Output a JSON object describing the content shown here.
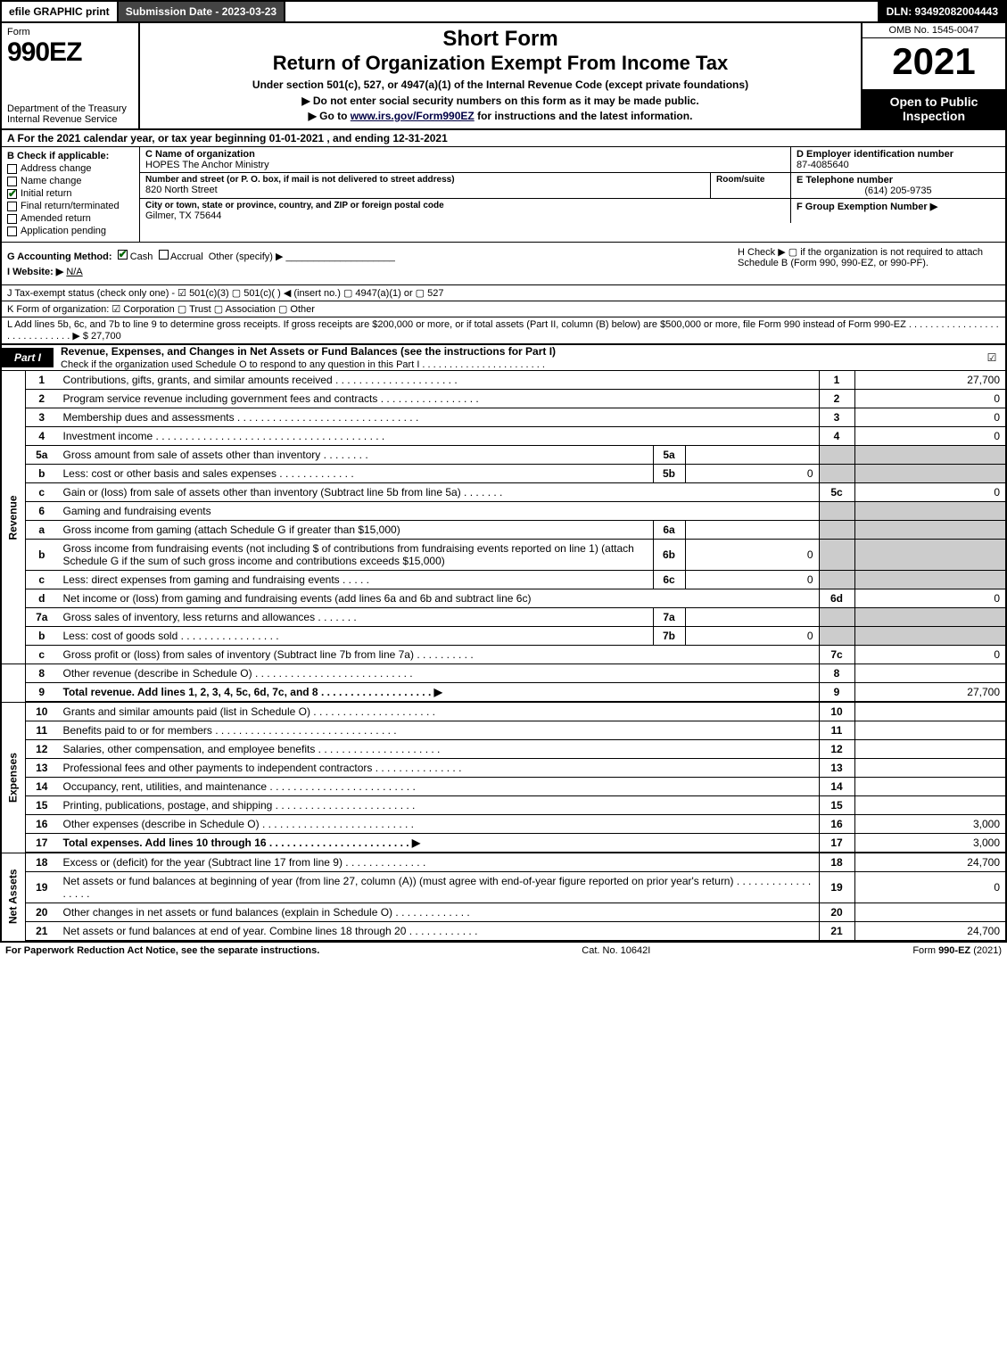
{
  "topbar": {
    "efile": "efile GRAPHIC print",
    "submission": "Submission Date - 2023-03-23",
    "dln": "DLN: 93492082004443"
  },
  "header": {
    "form_word": "Form",
    "form_number": "990EZ",
    "department": "Department of the Treasury\nInternal Revenue Service",
    "short_form": "Short Form",
    "title": "Return of Organization Exempt From Income Tax",
    "subtitle": "Under section 501(c), 527, or 4947(a)(1) of the Internal Revenue Code (except private foundations)",
    "note1": "▶ Do not enter social security numbers on this form as it may be made public.",
    "note2_prefix": "▶ Go to ",
    "note2_link": "www.irs.gov/Form990EZ",
    "note2_suffix": " for instructions and the latest information.",
    "omb": "OMB No. 1545-0047",
    "year": "2021",
    "inspection": "Open to Public Inspection"
  },
  "row_a": "A  For the 2021 calendar year, or tax year beginning 01-01-2021 , and ending 12-31-2021",
  "section_b": {
    "header": "B  Check if applicable:",
    "items": [
      {
        "label": "Address change",
        "checked": false
      },
      {
        "label": "Name change",
        "checked": false
      },
      {
        "label": "Initial return",
        "checked": true
      },
      {
        "label": "Final return/terminated",
        "checked": false
      },
      {
        "label": "Amended return",
        "checked": false
      },
      {
        "label": "Application pending",
        "checked": false
      }
    ]
  },
  "section_c": {
    "name_hdr": "C Name of organization",
    "name": "HOPES The Anchor Ministry",
    "addr_hdr": "Number and street (or P. O. box, if mail is not delivered to street address)",
    "addr": "820 North Street",
    "room_hdr": "Room/suite",
    "room": "",
    "city_hdr": "City or town, state or province, country, and ZIP or foreign postal code",
    "city": "Gilmer, TX  75644"
  },
  "section_d": {
    "hdr": "D Employer identification number",
    "val": "87-4085640"
  },
  "section_e": {
    "hdr": "E Telephone number",
    "val": "(614) 205-9735"
  },
  "section_f": {
    "hdr": "F Group Exemption Number  ▶",
    "val": ""
  },
  "section_g": {
    "label": "G Accounting Method:",
    "cash": "Cash",
    "accrual": "Accrual",
    "other": "Other (specify) ▶"
  },
  "section_h": {
    "text": "H  Check ▶  ▢  if the organization is not required to attach Schedule B (Form 990, 990-EZ, or 990-PF)."
  },
  "section_i": {
    "label": "I Website: ▶",
    "val": "N/A"
  },
  "line_j": "J Tax-exempt status (check only one) - ☑ 501(c)(3)  ▢ 501(c)(  ) ◀ (insert no.)  ▢ 4947(a)(1) or  ▢ 527",
  "line_k": "K Form of organization:  ☑ Corporation   ▢ Trust   ▢ Association   ▢ Other",
  "line_l": "L Add lines 5b, 6c, and 7b to line 9 to determine gross receipts. If gross receipts are $200,000 or more, or if total assets (Part II, column (B) below) are $500,000 or more, file Form 990 instead of Form 990-EZ  . . . . . . . . . . . . . . . . . . . . . . . . . . . . .  ▶ $ 27,700",
  "part1": {
    "tab": "Part I",
    "title": "Revenue, Expenses, and Changes in Net Assets or Fund Balances (see the instructions for Part I)",
    "subtitle": "Check if the organization used Schedule O to respond to any question in this Part I . . . . . . . . . . . . . . . . . . . . . . .",
    "check": "☑"
  },
  "side_labels": {
    "revenue": "Revenue",
    "expenses": "Expenses",
    "netassets": "Net Assets"
  },
  "lines": {
    "l1": {
      "ln": "1",
      "desc": "Contributions, gifts, grants, and similar amounts received",
      "num": "1",
      "amt": "27,700"
    },
    "l2": {
      "ln": "2",
      "desc": "Program service revenue including government fees and contracts",
      "num": "2",
      "amt": "0"
    },
    "l3": {
      "ln": "3",
      "desc": "Membership dues and assessments",
      "num": "3",
      "amt": "0"
    },
    "l4": {
      "ln": "4",
      "desc": "Investment income",
      "num": "4",
      "amt": "0"
    },
    "l5a": {
      "ln": "5a",
      "desc": "Gross amount from sale of assets other than inventory",
      "sub": "5a",
      "subval": ""
    },
    "l5b": {
      "ln": "b",
      "desc": "Less: cost or other basis and sales expenses",
      "sub": "5b",
      "subval": "0"
    },
    "l5c": {
      "ln": "c",
      "desc": "Gain or (loss) from sale of assets other than inventory (Subtract line 5b from line 5a)",
      "num": "5c",
      "amt": "0"
    },
    "l6": {
      "ln": "6",
      "desc": "Gaming and fundraising events"
    },
    "l6a": {
      "ln": "a",
      "desc": "Gross income from gaming (attach Schedule G if greater than $15,000)",
      "sub": "6a",
      "subval": ""
    },
    "l6b": {
      "ln": "b",
      "desc": "Gross income from fundraising events (not including $                      of contributions from fundraising events reported on line 1) (attach Schedule G if the sum of such gross income and contributions exceeds $15,000)",
      "sub": "6b",
      "subval": "0"
    },
    "l6c": {
      "ln": "c",
      "desc": "Less: direct expenses from gaming and fundraising events",
      "sub": "6c",
      "subval": "0"
    },
    "l6d": {
      "ln": "d",
      "desc": "Net income or (loss) from gaming and fundraising events (add lines 6a and 6b and subtract line 6c)",
      "num": "6d",
      "amt": "0"
    },
    "l7a": {
      "ln": "7a",
      "desc": "Gross sales of inventory, less returns and allowances",
      "sub": "7a",
      "subval": ""
    },
    "l7b": {
      "ln": "b",
      "desc": "Less: cost of goods sold",
      "sub": "7b",
      "subval": "0"
    },
    "l7c": {
      "ln": "c",
      "desc": "Gross profit or (loss) from sales of inventory (Subtract line 7b from line 7a)",
      "num": "7c",
      "amt": "0"
    },
    "l8": {
      "ln": "8",
      "desc": "Other revenue (describe in Schedule O)",
      "num": "8",
      "amt": ""
    },
    "l9": {
      "ln": "9",
      "desc": "Total revenue. Add lines 1, 2, 3, 4, 5c, 6d, 7c, and 8  . . . . . . . . . . . . . . . . . . .  ▶",
      "num": "9",
      "amt": "27,700"
    },
    "l10": {
      "ln": "10",
      "desc": "Grants and similar amounts paid (list in Schedule O)",
      "num": "10",
      "amt": ""
    },
    "l11": {
      "ln": "11",
      "desc": "Benefits paid to or for members",
      "num": "11",
      "amt": ""
    },
    "l12": {
      "ln": "12",
      "desc": "Salaries, other compensation, and employee benefits",
      "num": "12",
      "amt": ""
    },
    "l13": {
      "ln": "13",
      "desc": "Professional fees and other payments to independent contractors",
      "num": "13",
      "amt": ""
    },
    "l14": {
      "ln": "14",
      "desc": "Occupancy, rent, utilities, and maintenance",
      "num": "14",
      "amt": ""
    },
    "l15": {
      "ln": "15",
      "desc": "Printing, publications, postage, and shipping",
      "num": "15",
      "amt": ""
    },
    "l16": {
      "ln": "16",
      "desc": "Other expenses (describe in Schedule O)",
      "num": "16",
      "amt": "3,000"
    },
    "l17": {
      "ln": "17",
      "desc": "Total expenses. Add lines 10 through 16  . . . . . . . . . . . . . . . . . . . . . . . .  ▶",
      "num": "17",
      "amt": "3,000"
    },
    "l18": {
      "ln": "18",
      "desc": "Excess or (deficit) for the year (Subtract line 17 from line 9)",
      "num": "18",
      "amt": "24,700"
    },
    "l19": {
      "ln": "19",
      "desc": "Net assets or fund balances at beginning of year (from line 27, column (A)) (must agree with end-of-year figure reported on prior year's return)",
      "num": "19",
      "amt": "0"
    },
    "l20": {
      "ln": "20",
      "desc": "Other changes in net assets or fund balances (explain in Schedule O)",
      "num": "20",
      "amt": ""
    },
    "l21": {
      "ln": "21",
      "desc": "Net assets or fund balances at end of year. Combine lines 18 through 20",
      "num": "21",
      "amt": "24,700"
    }
  },
  "footer": {
    "left": "For Paperwork Reduction Act Notice, see the separate instructions.",
    "center": "Cat. No. 10642I",
    "right_prefix": "Form ",
    "right_form": "990-EZ",
    "right_suffix": " (2021)"
  }
}
